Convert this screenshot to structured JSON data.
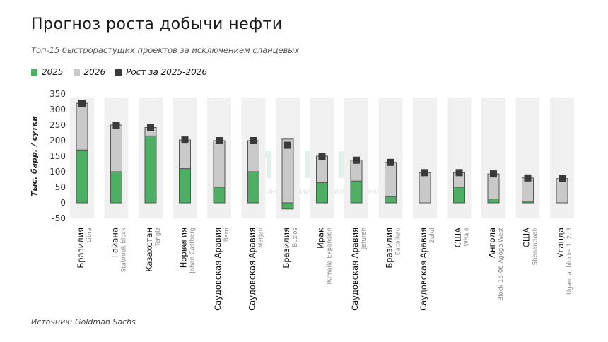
{
  "title": "Прогноз роста добычи нефти",
  "subtitle": "Топ-15 быстрорастущих проектов за исключением сланцевых",
  "source": "Источник: Goldman Sachs",
  "watermark": "ИИМР",
  "watermark_sub": "Институт изучения мировых рынков",
  "colors": {
    "s2025": "#4caf63",
    "s2026": "#c9c9c9",
    "growth": "#3a3a3a",
    "column_bg": "#f0f0f0"
  },
  "chart_data": {
    "type": "bar",
    "ylabel": "Тыс. барр. / сутки",
    "ylim": [
      -50,
      350
    ],
    "yticks": [
      -50,
      0,
      50,
      100,
      150,
      200,
      250,
      300,
      350
    ],
    "legend_position": "top-left",
    "series_names": [
      "2025",
      "2026",
      "Рост за 2025-2026"
    ],
    "categories": [
      {
        "country": "Бразилия",
        "project": "Libra"
      },
      {
        "country": "Гайана",
        "project": "Stabroek block"
      },
      {
        "country": "Казахстан",
        "project": "Tengiz"
      },
      {
        "country": "Норвегия",
        "project": "Johan Castberg"
      },
      {
        "country": "Саудовская Аравия",
        "project": "Berri"
      },
      {
        "country": "Саудовская Аравия",
        "project": "Marjan"
      },
      {
        "country": "Бразилия",
        "project": "Buzios"
      },
      {
        "country": "Ирак",
        "project": "Rumaila Expansion"
      },
      {
        "country": "Саудовская Аравия",
        "project": "Jafurah"
      },
      {
        "country": "Бразилия",
        "project": "Bacalhau"
      },
      {
        "country": "Саудовская Аравия",
        "project": "Zuluf"
      },
      {
        "country": "США",
        "project": "Whale"
      },
      {
        "country": "Ангола",
        "project": "Block 15-06 Agogo West"
      },
      {
        "country": "США",
        "project": "Shenandoah"
      },
      {
        "country": "Уганда",
        "project": "Uganda, blocks 1, 2, 3"
      }
    ],
    "series": [
      {
        "name": "2025",
        "values": [
          170,
          100,
          215,
          110,
          50,
          100,
          -20,
          65,
          70,
          20,
          0,
          50,
          12,
          5,
          0
        ]
      },
      {
        "name": "2026",
        "values": [
          320,
          250,
          242,
          202,
          200,
          200,
          205,
          150,
          137,
          130,
          97,
          97,
          93,
          80,
          78
        ]
      },
      {
        "name": "Рост за 2025-2026",
        "values": [
          320,
          250,
          242,
          202,
          200,
          200,
          185,
          150,
          137,
          130,
          97,
          97,
          93,
          80,
          78
        ]
      }
    ]
  }
}
